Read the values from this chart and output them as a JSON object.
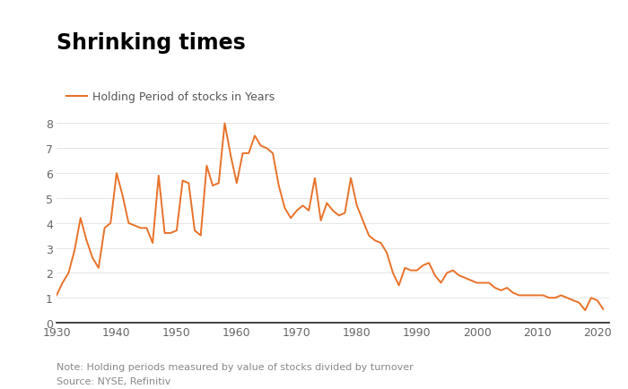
{
  "title": "Shrinking times",
  "legend_label": "Holding Period of stocks in Years",
  "note": "Note: Holding periods measured by value of stocks divided by turnover",
  "source": "Source: NYSE, Refinitiv",
  "line_color": "#E8722A",
  "background_color": "#ffffff",
  "xlim": [
    1930,
    2022
  ],
  "ylim": [
    0,
    8.6
  ],
  "yticks": [
    0,
    1,
    2,
    3,
    4,
    5,
    6,
    7,
    8
  ],
  "xticks": [
    1930,
    1940,
    1950,
    1960,
    1970,
    1980,
    1990,
    2000,
    2010,
    2020
  ],
  "years": [
    1930,
    1931,
    1932,
    1933,
    1934,
    1935,
    1936,
    1937,
    1938,
    1939,
    1940,
    1941,
    1942,
    1943,
    1944,
    1945,
    1946,
    1947,
    1948,
    1949,
    1950,
    1951,
    1952,
    1953,
    1954,
    1955,
    1956,
    1957,
    1958,
    1959,
    1960,
    1961,
    1962,
    1963,
    1964,
    1965,
    1966,
    1967,
    1968,
    1969,
    1970,
    1971,
    1972,
    1973,
    1974,
    1975,
    1976,
    1977,
    1978,
    1979,
    1980,
    1981,
    1982,
    1983,
    1984,
    1985,
    1986,
    1987,
    1988,
    1989,
    1990,
    1991,
    1992,
    1993,
    1994,
    1995,
    1996,
    1997,
    1998,
    1999,
    2000,
    2001,
    2002,
    2003,
    2004,
    2005,
    2006,
    2007,
    2008,
    2009,
    2010,
    2011,
    2012,
    2013,
    2014,
    2015,
    2016,
    2017,
    2018,
    2019,
    2020,
    2021
  ],
  "values": [
    1.1,
    1.6,
    2.0,
    2.9,
    4.2,
    3.3,
    2.6,
    2.2,
    3.8,
    4.0,
    6.0,
    5.1,
    4.0,
    3.9,
    3.8,
    3.8,
    3.2,
    5.9,
    3.6,
    3.6,
    3.7,
    5.7,
    5.6,
    3.7,
    3.5,
    6.3,
    5.5,
    5.6,
    8.0,
    6.7,
    5.6,
    6.8,
    6.8,
    7.5,
    7.1,
    7.0,
    6.8,
    5.5,
    4.6,
    4.2,
    4.5,
    4.7,
    4.5,
    5.8,
    4.1,
    4.8,
    4.5,
    4.3,
    4.4,
    5.8,
    4.7,
    4.1,
    3.5,
    3.3,
    3.2,
    2.8,
    2.0,
    1.5,
    2.2,
    2.1,
    2.1,
    2.3,
    2.4,
    1.9,
    1.6,
    2.0,
    2.1,
    1.9,
    1.8,
    1.7,
    1.6,
    1.6,
    1.6,
    1.4,
    1.3,
    1.4,
    1.2,
    1.1,
    1.1,
    1.1,
    1.1,
    1.1,
    1.0,
    1.0,
    1.1,
    1.0,
    0.9,
    0.8,
    0.5,
    1.0,
    0.9,
    0.55
  ]
}
